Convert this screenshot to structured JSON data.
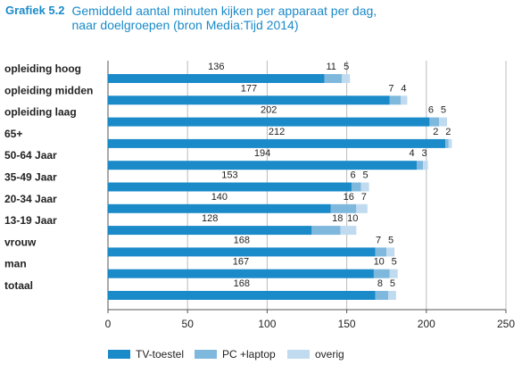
{
  "figure": {
    "label": "Grafiek 5.2",
    "title_line1": "Gemiddeld aantal minuten kijken per apparaat per dag,",
    "title_line2": "naar doelgroepen (bron Media:Tijd 2014)"
  },
  "colors": {
    "tv": "#1a8ac9",
    "pc": "#7fb8dd",
    "overig": "#c0dbef",
    "grid": "#bbbbbb",
    "title": "#1a8ac9",
    "text": "#222222"
  },
  "chart_data": {
    "type": "bar",
    "orientation": "horizontal",
    "stacked": true,
    "categories": [
      "opleiding hoog",
      "opleiding midden",
      "opleiding laag",
      "65+",
      "50-64 Jaar",
      "35-49 Jaar",
      "20-34 Jaar",
      "13-19 Jaar",
      "vrouw",
      "man",
      "totaal"
    ],
    "series": [
      {
        "name": "TV-toestel",
        "values": [
          136,
          177,
          202,
          212,
          194,
          153,
          140,
          128,
          168,
          167,
          168
        ]
      },
      {
        "name": "PC +laptop",
        "values": [
          11,
          7,
          6,
          2,
          4,
          6,
          16,
          18,
          7,
          10,
          8
        ]
      },
      {
        "name": "overig",
        "values": [
          5,
          4,
          5,
          2,
          3,
          5,
          7,
          10,
          5,
          5,
          5
        ]
      }
    ],
    "xlim": [
      0,
      250
    ],
    "x_ticks": [
      0,
      50,
      100,
      150,
      200,
      250
    ],
    "grid": true,
    "legend_position": "bottom"
  }
}
